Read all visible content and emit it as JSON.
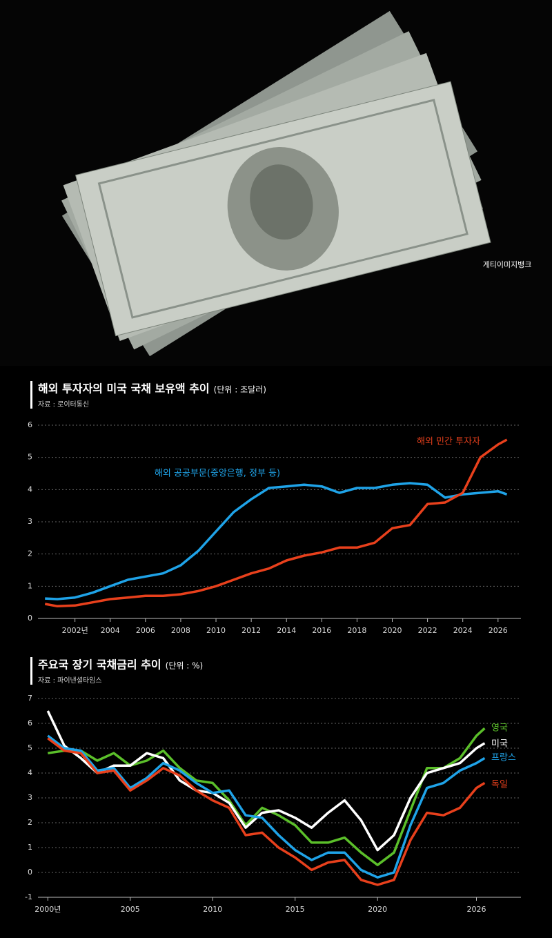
{
  "photo_credit": "게티이미지뱅크",
  "chart_data": [
    {
      "type": "line",
      "title": "해외 투자자의 미국 국채 보유액 추이",
      "unit": "(단위 : 조달러)",
      "source": "자료 : 로이터통신",
      "x": [
        2000.3,
        2001,
        2002,
        2003,
        2004,
        2005,
        2006,
        2007,
        2008,
        2009,
        2010,
        2011,
        2012,
        2013,
        2014,
        2015,
        2016,
        2017,
        2018,
        2019,
        2020,
        2021,
        2022,
        2023,
        2024,
        2025,
        2026,
        2026.5
      ],
      "series": [
        {
          "name": "해외 공공부문(중앙은행, 정부 등)",
          "color": "#1fa3e8",
          "values": [
            0.62,
            0.6,
            0.65,
            0.8,
            1.0,
            1.2,
            1.3,
            1.4,
            1.65,
            2.1,
            2.7,
            3.3,
            3.7,
            4.05,
            4.1,
            4.15,
            4.1,
            3.9,
            4.05,
            4.05,
            4.15,
            4.2,
            4.15,
            3.75,
            3.85,
            3.9,
            3.95,
            3.85
          ]
        },
        {
          "name": "해외 민간 투자자",
          "color": "#e8401c",
          "values": [
            0.45,
            0.38,
            0.4,
            0.5,
            0.6,
            0.65,
            0.7,
            0.7,
            0.75,
            0.85,
            1.0,
            1.2,
            1.4,
            1.55,
            1.8,
            1.95,
            2.05,
            2.2,
            2.2,
            2.35,
            2.8,
            2.9,
            3.55,
            3.6,
            3.9,
            5.0,
            5.4,
            5.55
          ]
        }
      ],
      "xlim": [
        1999.9,
        2027.3
      ],
      "xticks": [
        {
          "value": 2002,
          "label": "2002년"
        },
        2004,
        2006,
        2008,
        2010,
        2012,
        2014,
        2016,
        2018,
        2020,
        2022,
        2024,
        2026
      ],
      "ylim": [
        0,
        6
      ],
      "yticks": [
        0,
        1,
        2,
        3,
        4,
        5,
        6
      ],
      "grid": true
    },
    {
      "type": "line",
      "title": "주요국 장기 국채금리 추이",
      "unit": "(단위 : %)",
      "source": "자료 : 파이낸셜타임스",
      "x": [
        2000,
        2001,
        2002,
        2003,
        2004,
        2005,
        2006,
        2007,
        2008,
        2009,
        2010,
        2011,
        2012,
        2013,
        2014,
        2015,
        2016,
        2017,
        2018,
        2019,
        2020,
        2021,
        2022,
        2023,
        2024,
        2025,
        2026,
        2026.5
      ],
      "series": [
        {
          "name": "영국",
          "color": "#5bbf2a",
          "values": [
            4.8,
            4.9,
            4.9,
            4.5,
            4.8,
            4.3,
            4.5,
            4.9,
            4.2,
            3.7,
            3.6,
            2.9,
            1.9,
            2.6,
            2.3,
            1.9,
            1.2,
            1.2,
            1.4,
            0.8,
            0.3,
            0.8,
            2.5,
            4.2,
            4.2,
            4.6,
            5.5,
            5.8
          ]
        },
        {
          "name": "미국",
          "color": "#ffffff",
          "values": [
            6.5,
            5.1,
            4.6,
            4.0,
            4.3,
            4.3,
            4.8,
            4.6,
            3.7,
            3.3,
            3.2,
            2.8,
            1.8,
            2.4,
            2.5,
            2.2,
            1.8,
            2.4,
            2.9,
            2.1,
            0.9,
            1.5,
            3.0,
            4.0,
            4.2,
            4.4,
            5.0,
            5.2
          ]
        },
        {
          "name": "프랑스",
          "color": "#1fa3e8",
          "values": [
            5.5,
            5.0,
            4.9,
            4.1,
            4.2,
            3.4,
            3.8,
            4.4,
            4.1,
            3.6,
            3.2,
            3.3,
            2.3,
            2.2,
            1.5,
            0.9,
            0.5,
            0.8,
            0.8,
            0.1,
            -0.2,
            0.0,
            1.9,
            3.4,
            3.6,
            4.1,
            4.4,
            4.6
          ]
        },
        {
          "name": "독일",
          "color": "#e8401c",
          "values": [
            5.4,
            4.9,
            4.8,
            4.0,
            4.1,
            3.3,
            3.7,
            4.2,
            3.9,
            3.3,
            2.9,
            2.6,
            1.5,
            1.6,
            1.0,
            0.6,
            0.1,
            0.4,
            0.5,
            -0.3,
            -0.5,
            -0.3,
            1.3,
            2.4,
            2.3,
            2.6,
            3.4,
            3.6
          ]
        }
      ],
      "xlim": [
        1999.4,
        2028.7
      ],
      "xticks": [
        {
          "value": 2000,
          "label": "2000년"
        },
        2005,
        2010,
        2015,
        2020,
        2026
      ],
      "ylim": [
        -1,
        7
      ],
      "yticks": [
        -1,
        0,
        1,
        2,
        3,
        4,
        5,
        6,
        7
      ],
      "grid": true
    }
  ]
}
